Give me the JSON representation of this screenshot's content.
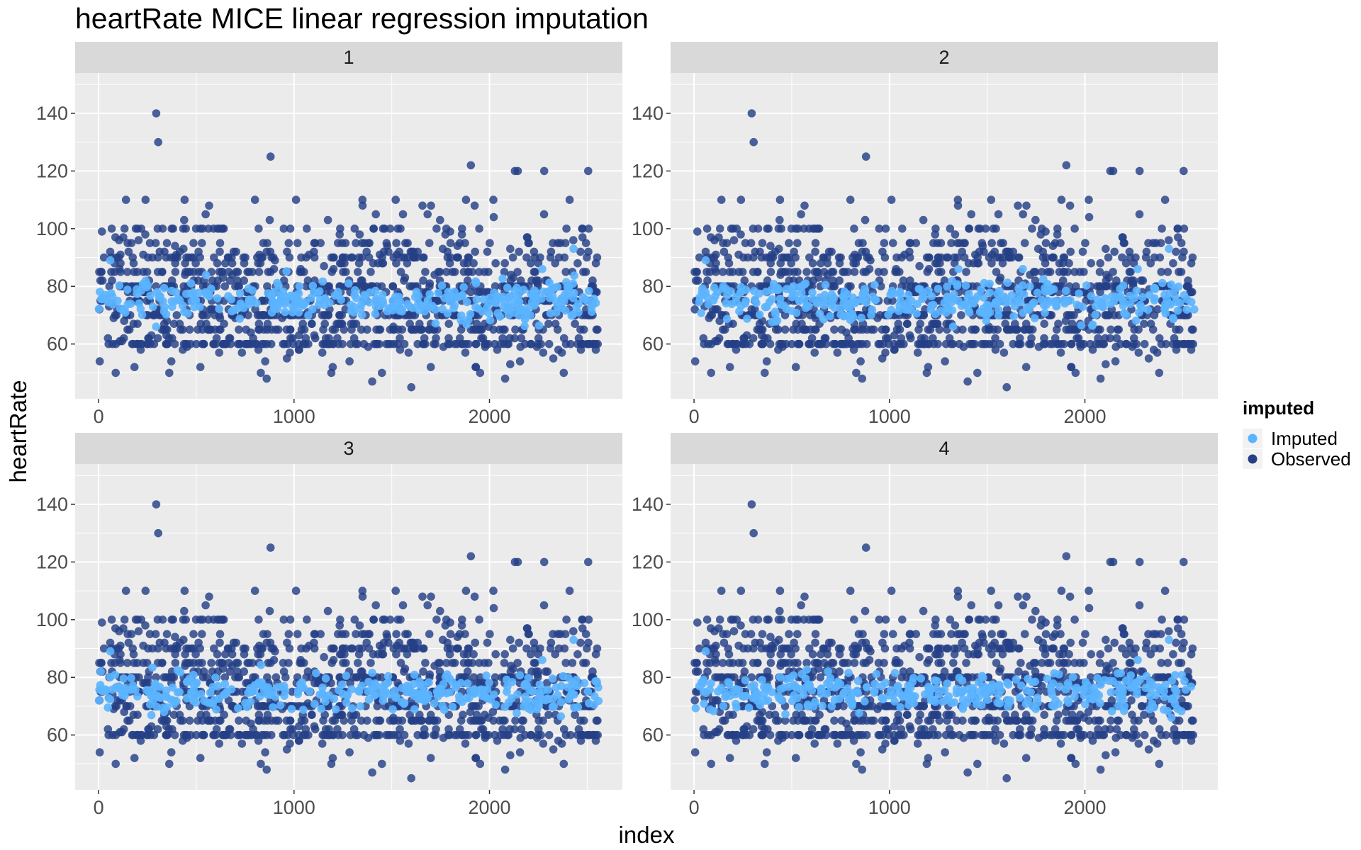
{
  "chart_data": {
    "type": "scatter",
    "title": "heartRate MICE linear regression imputation",
    "xlabel": "index",
    "ylabel": "heartRate",
    "xlim": [
      -120,
      2680
    ],
    "ylim": [
      41,
      154
    ],
    "x_ticks": [
      0,
      1000,
      2000
    ],
    "y_ticks": [
      60,
      80,
      100,
      120,
      140
    ],
    "grid": true,
    "legend": {
      "title": "imputed",
      "position": "right",
      "entries": [
        {
          "label": "Imputed",
          "color": "#5BB4FF"
        },
        {
          "label": "Observed",
          "color": "#253F86"
        }
      ]
    },
    "facets": [
      "1",
      "2",
      "3",
      "4"
    ],
    "series": [
      {
        "name": "Observed",
        "color": "#253F86",
        "n_points": 2580,
        "x_range": [
          0,
          2560
        ],
        "typical_values": [
          60,
          62,
          65,
          67,
          70,
          72,
          75,
          78,
          80,
          82,
          85,
          88,
          90,
          92,
          95,
          100
        ],
        "notable_points": [
          {
            "x": 295,
            "y": 140
          },
          {
            "x": 305,
            "y": 130
          },
          {
            "x": 880,
            "y": 125
          },
          {
            "x": 1905,
            "y": 122
          },
          {
            "x": 2130,
            "y": 120
          },
          {
            "x": 2145,
            "y": 120
          },
          {
            "x": 2280,
            "y": 120
          },
          {
            "x": 2505,
            "y": 120
          },
          {
            "x": 140,
            "y": 110
          },
          {
            "x": 240,
            "y": 110
          },
          {
            "x": 440,
            "y": 110
          },
          {
            "x": 800,
            "y": 110
          },
          {
            "x": 1010,
            "y": 110
          },
          {
            "x": 1350,
            "y": 110
          },
          {
            "x": 1520,
            "y": 110
          },
          {
            "x": 1880,
            "y": 110
          },
          {
            "x": 2020,
            "y": 110
          },
          {
            "x": 2410,
            "y": 110
          },
          {
            "x": 830,
            "y": 50
          },
          {
            "x": 860,
            "y": 48
          },
          {
            "x": 1400,
            "y": 47
          },
          {
            "x": 1600,
            "y": 45
          },
          {
            "x": 2080,
            "y": 48
          },
          {
            "x": 2380,
            "y": 50
          }
        ]
      },
      {
        "name": "Imputed",
        "color": "#5BB4FF",
        "n_points": 520,
        "x_range": [
          0,
          2560
        ],
        "mean": 75,
        "spread": [
          66,
          93
        ]
      }
    ]
  }
}
